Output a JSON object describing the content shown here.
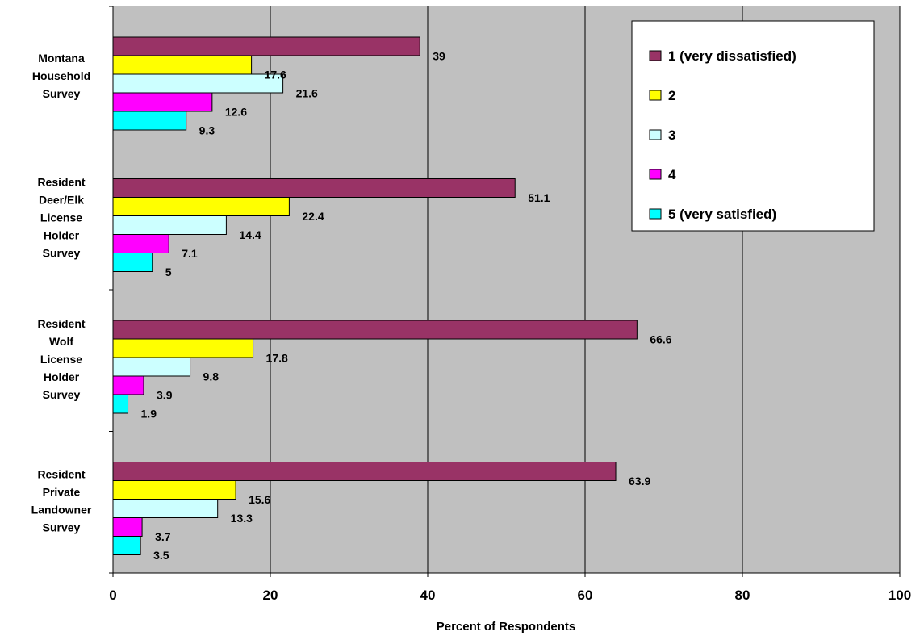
{
  "chart_data": {
    "type": "bar",
    "orientation": "horizontal",
    "categories": [
      [
        "Montana",
        "Household",
        "Survey"
      ],
      [
        "Resident",
        "Deer/Elk",
        "License",
        "Holder",
        "Survey"
      ],
      [
        "Resident",
        "Wolf",
        "License",
        "Holder",
        "Survey"
      ],
      [
        "Resident",
        "Private",
        "Landowner",
        "Survey"
      ]
    ],
    "series": [
      {
        "name": "1 (very dissatisfied)",
        "color": "#993366",
        "values": [
          39,
          51.1,
          66.6,
          63.9
        ],
        "labels": [
          "39",
          "51.1",
          "66.6",
          "63.9"
        ]
      },
      {
        "name": "2",
        "color": "#ffff00",
        "values": [
          17.6,
          22.4,
          17.8,
          15.6
        ],
        "labels": [
          "17.6",
          "22.4",
          "17.8",
          "15.6"
        ]
      },
      {
        "name": "3",
        "color": "#ccffff",
        "values": [
          21.6,
          14.4,
          9.8,
          13.3
        ],
        "labels": [
          "21.6",
          "14.4",
          "9.8",
          "13.3"
        ]
      },
      {
        "name": "4",
        "color": "#ff00ff",
        "values": [
          12.6,
          7.1,
          3.9,
          3.7
        ],
        "labels": [
          "12.6",
          "7.1",
          "3.9",
          "3.7"
        ]
      },
      {
        "name": "5 (very satisfied)",
        "color": "#00ffff",
        "values": [
          9.3,
          5,
          1.9,
          3.5
        ],
        "labels": [
          "9.3",
          "5",
          "1.9",
          "3.5"
        ]
      }
    ],
    "xlabel": "Percent of Respondents",
    "xlim": [
      0,
      100
    ],
    "xticks": [
      0,
      20,
      40,
      60,
      80,
      100
    ],
    "xtick_labels": [
      "0",
      "20",
      "40",
      "60",
      "80",
      "100"
    ],
    "grid": true,
    "plot_background": "#c0c0c0",
    "legend_position": "top-right"
  }
}
